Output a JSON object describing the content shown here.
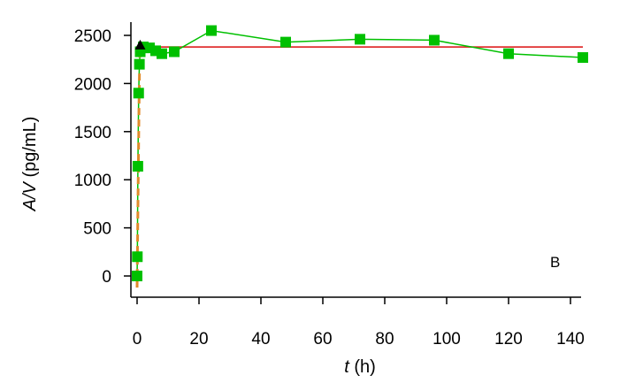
{
  "chart_data": {
    "type": "line",
    "xlabel_italic": "t",
    "xlabel_rest": " (h)",
    "ylabel_italic": "A/V",
    "ylabel_rest": " (pg/mL)",
    "annotation": "B",
    "xlim": [
      -2,
      144
    ],
    "ylim": [
      -250,
      2600
    ],
    "x_ticks": [
      0,
      20,
      40,
      60,
      80,
      100,
      120,
      140
    ],
    "y_ticks": [
      0,
      500,
      1000,
      1500,
      2000,
      2500
    ],
    "grid": false,
    "series": [
      {
        "style": "green-square-line",
        "color": "#00c000",
        "x": [
          0,
          0.08,
          0.25,
          0.5,
          0.75,
          1,
          2,
          4,
          6,
          8,
          12,
          24,
          48,
          72,
          96,
          120,
          144
        ],
        "y": [
          0,
          200,
          1140,
          1900,
          2200,
          2330,
          2380,
          2370,
          2340,
          2310,
          2330,
          2550,
          2430,
          2460,
          2450,
          2310,
          2270
        ]
      },
      {
        "style": "red-horizontal-line",
        "color": "#e03030",
        "x": [
          1,
          144
        ],
        "y": [
          2380,
          2380
        ]
      },
      {
        "style": "orange-dashed-line",
        "color": "#e08a2a",
        "x": [
          0,
          0.2,
          0.4,
          0.6,
          0.8,
          1.0
        ],
        "y": [
          -120,
          500,
          1100,
          1700,
          2200,
          2390
        ]
      },
      {
        "style": "black-triangle-marker",
        "color": "#000000",
        "x": [
          1
        ],
        "y": [
          2400
        ]
      }
    ]
  }
}
